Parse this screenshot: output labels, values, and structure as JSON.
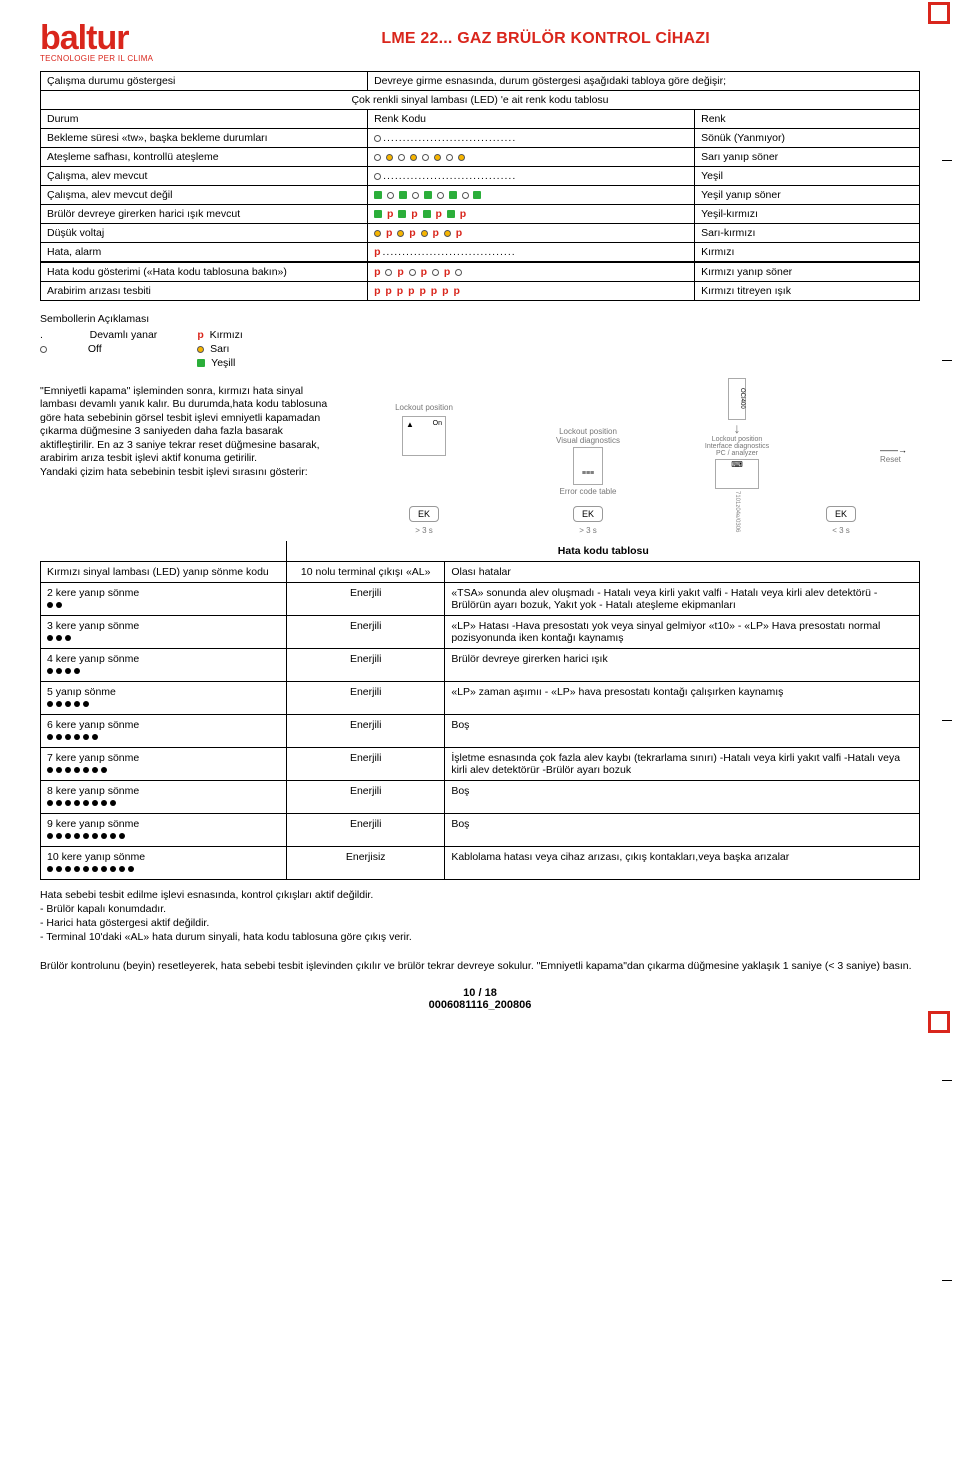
{
  "header": {
    "logo_text": "baltur",
    "tagline": "TECNOLOGIE PER IL CLIMA",
    "title": "LME 22... GAZ BRÜLÖR KONTROL CİHAZI"
  },
  "table1": {
    "row_intro_left": "Çalışma durumu göstergesi",
    "row_intro_right": "Devreye girme esnasında, durum göstergesi aşağıdaki tabloya göre değişir;",
    "row_sub": "Çok renkli sinyal lambası (LED) 'e ait renk kodu tablosu",
    "head_durum": "Durum",
    "head_kod": "Renk Kodu",
    "head_renk": "Renk",
    "rows": [
      {
        "durum": "Bekleme süresi «tw», başka bekleme durumları",
        "kod": "o_dots",
        "renk": "Sönük (Yanmıyor)"
      },
      {
        "durum": "Ateşleme safhası, kontrollü ateşleme",
        "kod": "yellow_seq",
        "renk": "Sarı yanıp söner"
      },
      {
        "durum": "Çalışma, alev mevcut",
        "kod": "o_dots",
        "renk": "Yeşil"
      },
      {
        "durum": "Çalışma, alev mevcut değil",
        "kod": "green_yel",
        "renk": "Yeşil yanıp söner"
      },
      {
        "durum": "Brülör devreye girerken harici ışık mevcut",
        "kod": "green_red",
        "renk": "Yeşil-kırmızı"
      },
      {
        "durum": "Düşük voltaj",
        "kod": "yel_red",
        "renk": "Sarı-kırmızı"
      },
      {
        "durum": "Hata, alarm",
        "kod": "p_dots",
        "renk": "Kırmızı"
      }
    ],
    "rows2": [
      {
        "durum": "Hata kodu gösterimi («Hata kodu tablosuna bakın»)",
        "kod": "p_o_mix",
        "renk": "Kırmızı yanıp söner"
      },
      {
        "durum": "Arabirim arızası tesbiti",
        "kod": "ppppp",
        "renk": "Kırmızı titreyen ışık"
      }
    ]
  },
  "legend": {
    "title": "Sembollerin Açıklaması",
    "dot_steady": "Devamlı yanar",
    "off": "Off",
    "p_label": "Kırmızı",
    "y_label": "Sarı",
    "g_label": "Yeşill",
    "dot_sym": ".",
    "o_sym": "○",
    "p_sym": "p"
  },
  "paragraph": "\"Emniyetli kapama\" işleminden sonra, kırmızı hata sinyal lambası devamlı yanık kalır. Bu durumda,hata kodu tablosuna göre hata sebebinin görsel tesbit işlevi emniyetli kapamadan çıkarma düğmesine 3 saniyeden daha fazla basarak aktifleştirilir. En az 3 saniye tekrar reset düğmesine basarak, arabirim arıza tesbit işlevi aktif konuma getirilir.\nYandaki çizim hata sebebinin tesbit işlevi sırasını  gösterir:",
  "diagram": {
    "label_lockout1": "Lockout position",
    "label_lockout2": "Lockout position\nVisual diagnostics",
    "label_lockout3": "Lockout position\nInterface diagnostics\nPC / analyzer",
    "on": "On",
    "ek": "EK",
    "gt3a": "> 3 s",
    "gt3b": "> 3 s",
    "lt3": "< 3 s",
    "errtbl": "Error code table",
    "reset": "Reset",
    "code1": "OCI400",
    "code2": "7101z04e/0306"
  },
  "table2": {
    "title": "Hata kodu tablosu",
    "head_left": "Kırmızı sinyal lambası  (LED) yanıp sönme kodu",
    "head_mid": "10 nolu terminal çıkışı «AL»",
    "head_right": "Olası hatalar",
    "rows": [
      {
        "n": 2,
        "l": "2 kere yanıp sönme",
        "m": "Enerjili",
        "r": "«TSA» sonunda alev oluşmadı - Hatalı veya kirli yakıt valfi - Hatalı veya kirli alev detektörü - Brülörün ayarı bozuk, Yakıt yok - Hatalı ateşleme ekipmanları"
      },
      {
        "n": 3,
        "l": "3 kere yanıp sönme",
        "m": "Enerjili",
        "r": "«LP» Hatası -Hava presostatı yok veya sinyal gelmiyor «t10» - «LP» Hava presostatı normal pozisyonunda iken kontağı kaynamış"
      },
      {
        "n": 4,
        "l": "4 kere yanıp sönme",
        "m": "Enerjili",
        "r": "Brülör devreye girerken harici ışık"
      },
      {
        "n": 5,
        "l": "5 yanıp sönme",
        "m": "Enerjili",
        "r": "«LP» zaman aşımıı  - «LP» hava presostatı kontağı çalışırken kaynamış"
      },
      {
        "n": 6,
        "l": "6 kere yanıp sönme",
        "m": "Enerjili",
        "r": "Boş"
      },
      {
        "n": 7,
        "l": "7 kere yanıp sönme",
        "m": "Enerjili",
        "r": "İşletme esnasında çok fazla alev kaybı (tekrarlama sınırı) -Hatalı veya kirli yakıt valfi -Hatalı veya kirli alev detektörür -Brülör ayarı bozuk"
      },
      {
        "n": 8,
        "l": "8 kere yanıp sönme",
        "m": "Enerjili",
        "r": "Boş"
      },
      {
        "n": 9,
        "l": "9 kere yanıp sönme",
        "m": "Enerjili",
        "r": "Boş"
      },
      {
        "n": 10,
        "l": "10 kere yanıp sönme",
        "m": "Enerjisiz",
        "r": "Kablolama hatası veya cihaz arızası, çıkış kontakları,veya başka arızalar"
      }
    ]
  },
  "footnotes": {
    "l1": "Hata sebebi tesbit edilme işlevi esnasında, kontrol çıkışları aktif değildir.",
    "b1": "-  Brülör kapalı konumdadır.",
    "b2": "-  Harici hata göstergesi aktif değildir.",
    "b3": "-  Terminal 10'daki «AL» hata durum sinyali, hata kodu tablosuna göre çıkış verir.",
    "l2": "Brülör kontrolunu (beyin) resetleyerek, hata sebebi tesbit işlevinden çıkılır ve brülör tekrar devreye sokulur. \"Emniyetli kapama\"dan çıkarma düğmesine yaklaşık 1 saniye (< 3 saniye) basın."
  },
  "footer": {
    "page": "10 / 18",
    "code": "0006081116_200806"
  }
}
